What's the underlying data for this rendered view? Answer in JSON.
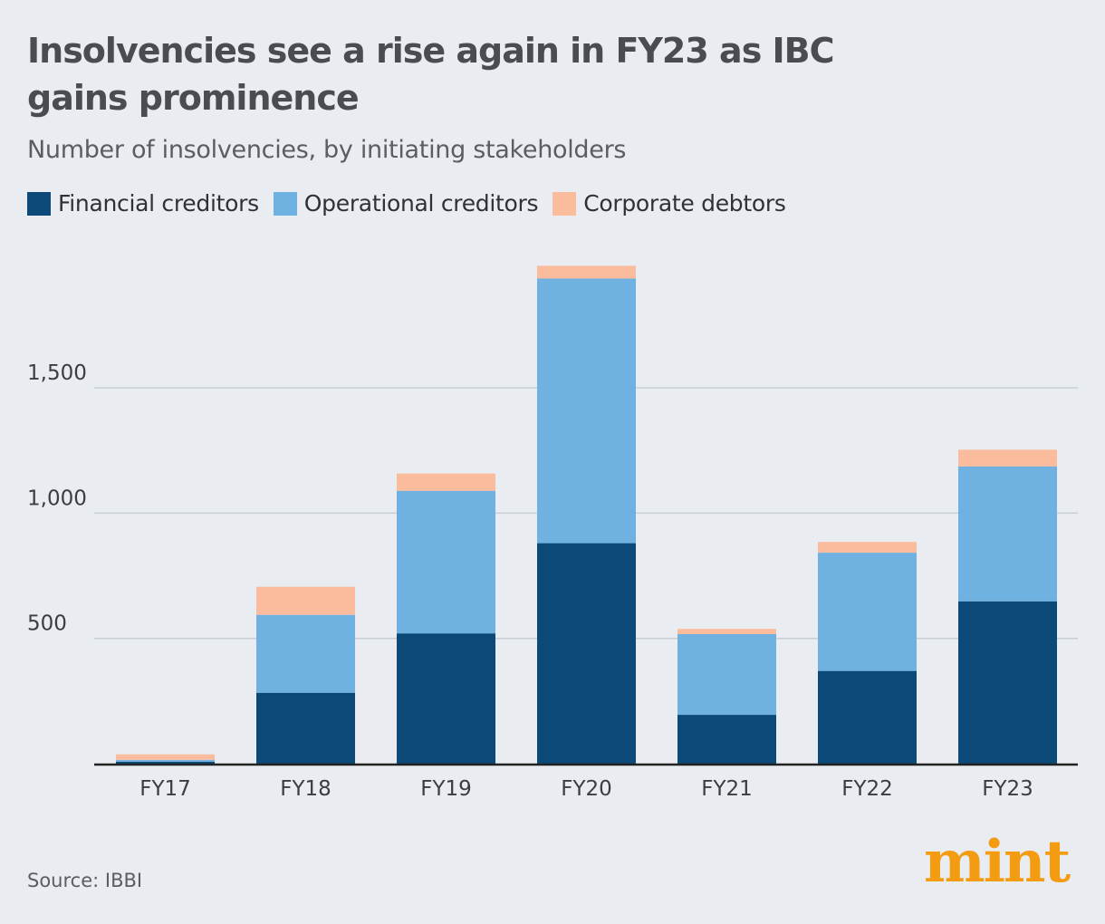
{
  "header": {
    "title": "Insolvencies see a rise again in FY23 as IBC gains prominence",
    "subtitle": "Number of insolvencies, by initiating stakeholders"
  },
  "legend": [
    {
      "label": "Financial creditors",
      "color": "#0b4a78"
    },
    {
      "label": "Operational creditors",
      "color": "#6fb1e1"
    },
    {
      "label": "Corporate debtors",
      "color": "#fbbc9e"
    }
  ],
  "footer": {
    "source": "Source: IBBI",
    "logo": "mint"
  },
  "chart_data": {
    "type": "bar",
    "stacked": true,
    "categories": [
      "FY17",
      "FY18",
      "FY19",
      "FY20",
      "FY21",
      "FY22",
      "FY23"
    ],
    "series": [
      {
        "name": "Financial creditors",
        "color": "#0b4a78",
        "values": [
          8,
          283,
          520,
          880,
          195,
          370,
          648
        ]
      },
      {
        "name": "Operational creditors",
        "color": "#6fb1e1",
        "values": [
          7,
          311,
          569,
          1056,
          322,
          472,
          538
        ]
      },
      {
        "name": "Corporate debtors",
        "color": "#fbbc9e",
        "values": [
          22,
          112,
          69,
          51,
          21,
          43,
          67
        ]
      }
    ],
    "yticks": [
      500,
      1000,
      1500
    ],
    "ytick_labels": [
      "500",
      "1,000",
      "1,500"
    ],
    "ylim": [
      0,
      2000
    ],
    "grid": true,
    "legend_position": "top-left"
  }
}
